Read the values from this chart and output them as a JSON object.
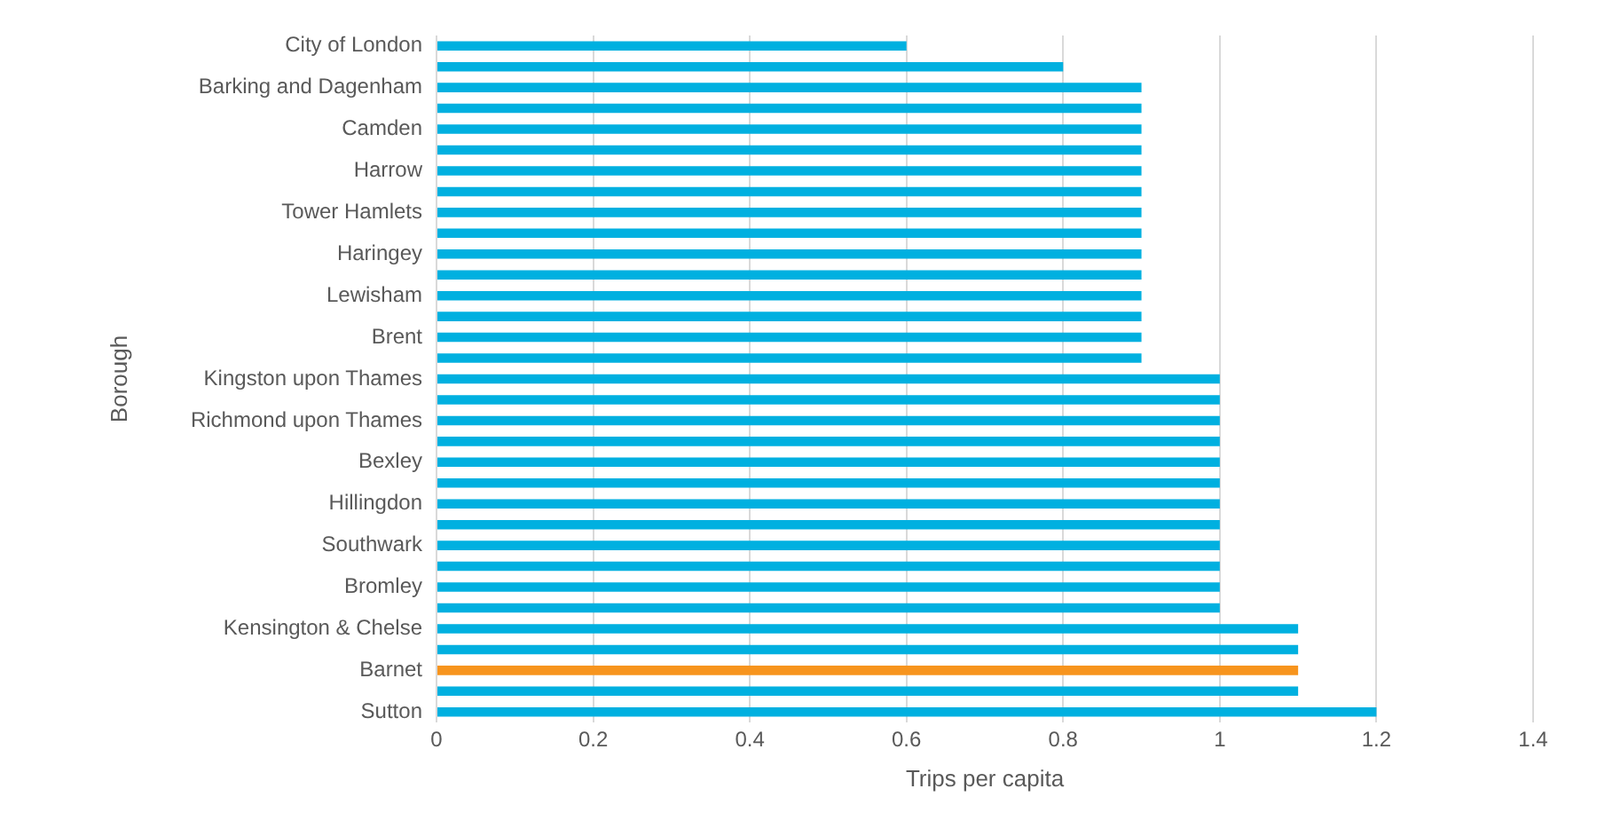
{
  "chart_data": {
    "type": "bar",
    "orientation": "horizontal",
    "xlabel": "Trips per capita",
    "ylabel": "Borough",
    "categories": [
      "City of London",
      null,
      "Barking and Dagenham",
      null,
      "Camden",
      null,
      "Harrow",
      null,
      "Tower Hamlets",
      null,
      "Haringey",
      null,
      "Lewisham",
      null,
      "Brent",
      null,
      "Kingston upon Thames",
      null,
      "Richmond upon Thames",
      null,
      "Bexley",
      null,
      "Hillingdon",
      null,
      "Southwark",
      null,
      "Bromley",
      null,
      "Kensington & Chelse",
      null,
      "Barnet",
      null,
      "Sutton"
    ],
    "values": [
      0.6,
      0.8,
      0.9,
      0.9,
      0.9,
      0.9,
      0.9,
      0.9,
      0.9,
      0.9,
      0.9,
      0.9,
      0.9,
      0.9,
      0.9,
      0.9,
      1.0,
      1.0,
      1.0,
      1.0,
      1.0,
      1.0,
      1.0,
      1.0,
      1.0,
      1.0,
      1.0,
      1.0,
      1.1,
      1.1,
      1.1,
      1.1,
      1.2
    ],
    "colors": [
      "#00b0e0",
      "#00b0e0",
      "#00b0e0",
      "#00b0e0",
      "#00b0e0",
      "#00b0e0",
      "#00b0e0",
      "#00b0e0",
      "#00b0e0",
      "#00b0e0",
      "#00b0e0",
      "#00b0e0",
      "#00b0e0",
      "#00b0e0",
      "#00b0e0",
      "#00b0e0",
      "#00b0e0",
      "#00b0e0",
      "#00b0e0",
      "#00b0e0",
      "#00b0e0",
      "#00b0e0",
      "#00b0e0",
      "#00b0e0",
      "#00b0e0",
      "#00b0e0",
      "#00b0e0",
      "#00b0e0",
      "#00b0e0",
      "#00b0e0",
      "#f7941d",
      "#00b0e0",
      "#00b0e0"
    ],
    "xlim": [
      0,
      1.4
    ],
    "xticks": [
      0,
      0.2,
      0.4,
      0.6,
      0.8,
      1,
      1.2,
      1.4
    ],
    "grid": "x",
    "legend": false
  }
}
